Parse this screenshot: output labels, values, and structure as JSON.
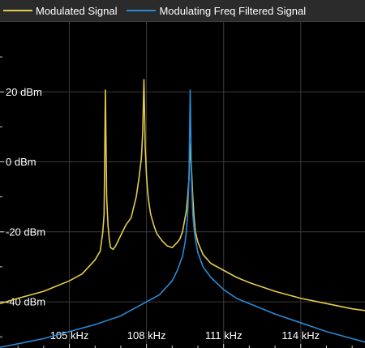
{
  "legend": {
    "items": [
      {
        "label": "Modulated Signal",
        "color": "#e4cc4a"
      },
      {
        "label": "Modulating Freq Filtered Signal",
        "color": "#2a8ad4"
      }
    ]
  },
  "colors": {
    "background": "#000000",
    "legend_background": "#2b2b2b",
    "grid": "#3a3a3a",
    "tick_label": "#ffffff"
  },
  "chart_data": {
    "type": "line",
    "title": "",
    "xlabel": "",
    "ylabel": "",
    "x_unit": "kHz",
    "y_unit": "dBm",
    "xlim": [
      102.3,
      116.5
    ],
    "ylim": [
      -53.2,
      40
    ],
    "grid": true,
    "legend_position": "top",
    "x_ticks": [
      {
        "value": 102,
        "label": ""
      },
      {
        "value": 105,
        "label": "105 kHz"
      },
      {
        "value": 108,
        "label": "108 kHz"
      },
      {
        "value": 111,
        "label": "111 kHz"
      },
      {
        "value": 114,
        "label": "114 kHz"
      }
    ],
    "y_ticks": [
      {
        "value": 20,
        "label": "20 dBm"
      },
      {
        "value": 0,
        "label": "0 dBm"
      },
      {
        "value": -20,
        "label": "-20 dBm"
      },
      {
        "value": -40,
        "label": "-40 dBm"
      }
    ],
    "series": [
      {
        "name": "Modulated Signal",
        "color": "#e4cc4a",
        "x": [
          102.3,
          103.0,
          104.0,
          104.5,
          105.0,
          105.5,
          106.0,
          106.2,
          106.3,
          106.35,
          106.4,
          106.45,
          106.5,
          106.55,
          106.6,
          106.7,
          106.8,
          107.0,
          107.2,
          107.4,
          107.6,
          107.7,
          107.8,
          107.85,
          107.9,
          107.95,
          108.0,
          108.05,
          108.1,
          108.15,
          108.2,
          108.3,
          108.4,
          108.6,
          108.8,
          109.0,
          109.2,
          109.3,
          109.4,
          109.5,
          109.55,
          109.6,
          109.65,
          109.7,
          109.75,
          109.8,
          109.85,
          109.9,
          110.0,
          110.2,
          110.5,
          111.0,
          111.5,
          112.0,
          113.0,
          114.0,
          115.0,
          116.0,
          116.5
        ],
        "y": [
          -40.5,
          -39,
          -37,
          -35.5,
          -34,
          -32,
          -28,
          -25.5,
          -20,
          -15,
          20.5,
          -10,
          -18,
          -22,
          -24.5,
          -25,
          -24,
          -21,
          -18,
          -16,
          -10,
          -5,
          1,
          8,
          23.5,
          4,
          -4,
          -9,
          -12,
          -14.5,
          -16,
          -18.5,
          -20.5,
          -22.5,
          -24,
          -24.5,
          -23,
          -22,
          -20,
          -16,
          -14,
          -10,
          -5,
          5,
          -2,
          -10,
          -16,
          -20,
          -23,
          -26.5,
          -29,
          -31,
          -33,
          -34.5,
          -37,
          -39,
          -40.5,
          -42,
          -42.5
        ]
      },
      {
        "name": "Modulating Freq Filtered Signal",
        "color": "#2a8ad4",
        "x": [
          102.3,
          103.0,
          104.0,
          105.0,
          106.0,
          107.0,
          108.0,
          108.5,
          109.0,
          109.2,
          109.4,
          109.5,
          109.55,
          109.6,
          109.65,
          109.7,
          109.75,
          109.8,
          109.85,
          109.9,
          110.0,
          110.2,
          110.5,
          111.0,
          111.5,
          112.0,
          113.0,
          114.0,
          115.0,
          116.0,
          116.5
        ],
        "y": [
          -53,
          -52,
          -50.5,
          -48.5,
          -46.5,
          -44,
          -40,
          -38,
          -34,
          -31,
          -27,
          -23,
          -20,
          -15,
          -5,
          20.5,
          -5,
          -15,
          -19,
          -22,
          -26,
          -30,
          -33,
          -36.5,
          -39,
          -40.5,
          -43.5,
          -46,
          -48.5,
          -50.5,
          -51.5
        ]
      }
    ]
  }
}
